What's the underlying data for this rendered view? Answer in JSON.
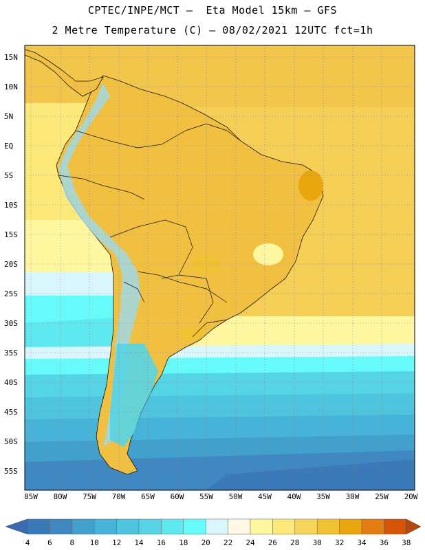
{
  "title_line1": "CPTEC/INPE/MCT –  Eta Model 15km – GFS",
  "title_line2": "2 Metre Temperature (C) – 08/02/2021 12UTC fct=1h",
  "lat_labels": [
    "15N",
    "10N",
    "5N",
    "EQ",
    "5S",
    "10S",
    "15S",
    "20S",
    "25S",
    "30S",
    "35S",
    "40S",
    "45S",
    "50S",
    "55S"
  ],
  "lon_labels": [
    "85W",
    "80W",
    "75W",
    "70W",
    "65W",
    "60W",
    "55W",
    "50W",
    "45W",
    "40W",
    "35W",
    "30W",
    "25W",
    "20W"
  ],
  "colorbar": {
    "values": [
      "4",
      "6",
      "8",
      "10",
      "12",
      "14",
      "16",
      "18",
      "20",
      "22",
      "24",
      "26",
      "28",
      "30",
      "32",
      "34",
      "36",
      "38"
    ],
    "colors": [
      "#3a7ab8",
      "#3f88c2",
      "#42a0cc",
      "#48b3d8",
      "#4fc4df",
      "#55d4e6",
      "#5ee8f0",
      "#66fbfa",
      "#d8f6fb",
      "#fff8e4",
      "#fff6a0",
      "#fde87a",
      "#f7d55a",
      "#efc133",
      "#e9a60e",
      "#e47d10",
      "#d85508",
      "#c63a04"
    ],
    "under_color": "#3b6bb0",
    "over_color": "#b8470d"
  }
}
